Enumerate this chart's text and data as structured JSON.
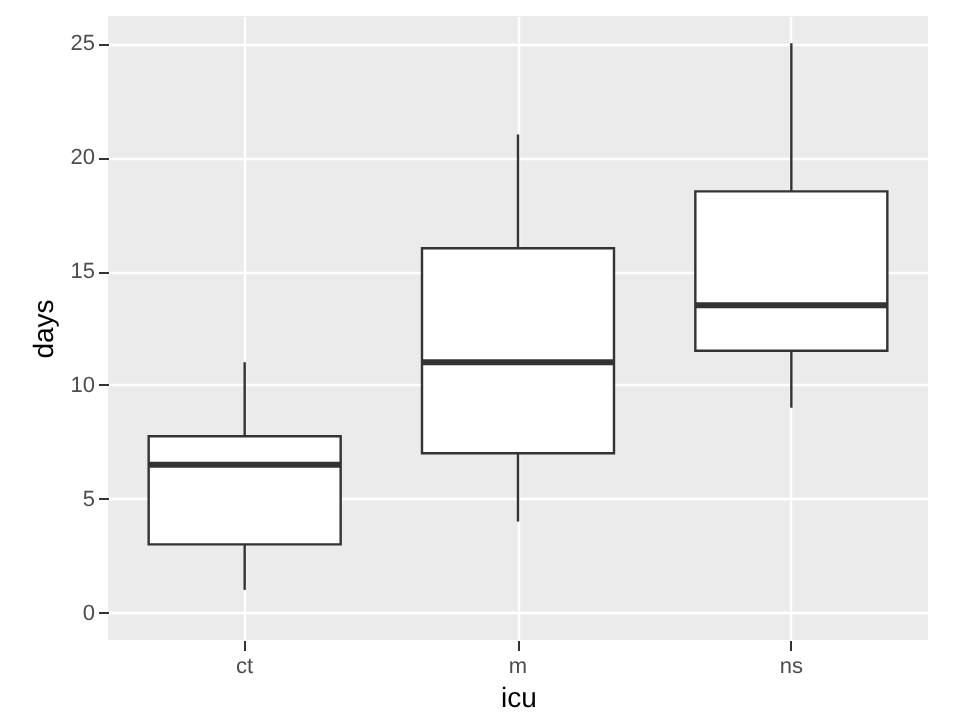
{
  "chart_data": {
    "type": "box",
    "xlabel": "icu",
    "ylabel": "days",
    "categories": [
      "ct",
      "m",
      "ns"
    ],
    "boxes": [
      {
        "low": 1,
        "q1": 3,
        "median": 6.5,
        "q3": 7.75,
        "high": 11
      },
      {
        "low": 4,
        "q1": 7,
        "median": 11,
        "q3": 16,
        "high": 21
      },
      {
        "low": 9,
        "q1": 11.5,
        "median": 13.5,
        "q3": 18.5,
        "high": 25
      }
    ],
    "ylim": [
      -1.2,
      26.2
    ],
    "yticks": [
      0,
      5,
      10,
      15,
      20,
      25
    ],
    "grid": true
  }
}
